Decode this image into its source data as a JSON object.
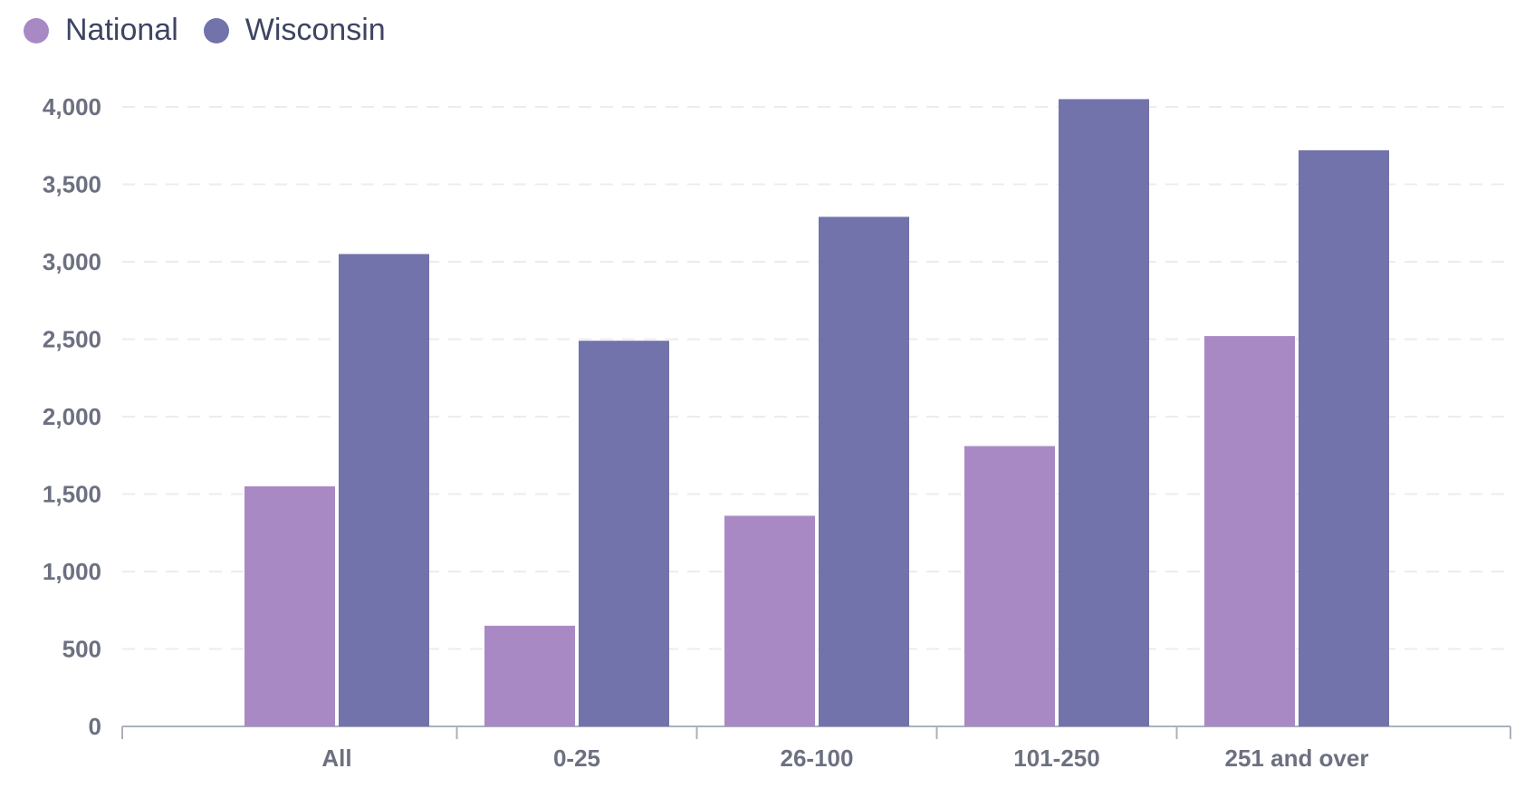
{
  "chart_data": {
    "type": "bar",
    "categories": [
      "All",
      "0-25",
      "26-100",
      "101-250",
      "251 and over"
    ],
    "series": [
      {
        "name": "National",
        "color": "#a989c4",
        "values": [
          1550,
          650,
          1360,
          1810,
          2520
        ]
      },
      {
        "name": "Wisconsin",
        "color": "#7273ab",
        "values": [
          3050,
          2490,
          3290,
          4050,
          3720
        ]
      }
    ],
    "y_ticks": [
      "0",
      "500",
      "1,000",
      "1,500",
      "2,000",
      "2,500",
      "3,000",
      "3,500",
      "4,000"
    ],
    "y_tick_values": [
      0,
      500,
      1000,
      1500,
      2000,
      2500,
      3000,
      3500,
      4000
    ],
    "ylim": [
      0,
      4000
    ],
    "grid": true,
    "legend_position": "top-left",
    "title": "",
    "xlabel": "",
    "ylabel": ""
  }
}
